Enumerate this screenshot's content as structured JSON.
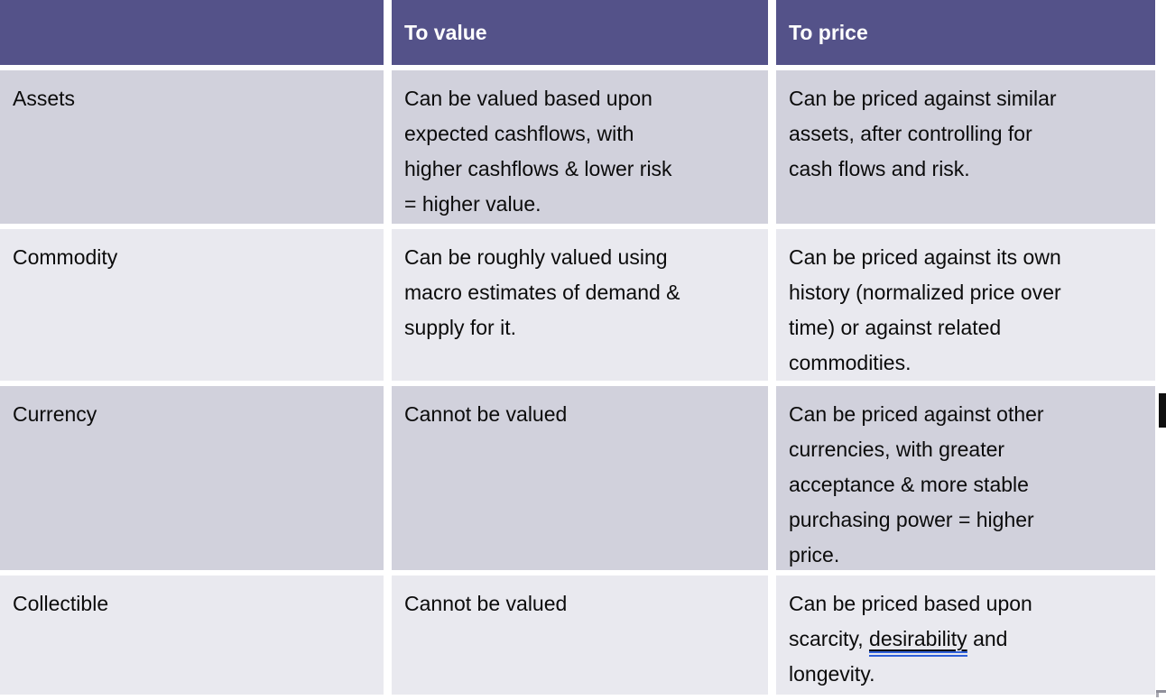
{
  "colors": {
    "header_bg": "#545289",
    "header_text": "#ffffff",
    "row_odd_bg": "#d1d1dc",
    "row_even_bg": "#e9e9ef",
    "body_text": "#0b0b0b",
    "grid_gap": "#ffffff",
    "spellcheck_underline_blue": "#2e5fd8",
    "edge_bar": "#101010"
  },
  "table": {
    "header": {
      "col1": "",
      "col2": "To value",
      "col3": "To price"
    },
    "rows": [
      {
        "label": "Assets",
        "to_value": "Can be valued based upon\nexpected cashflows, with\nhigher cashflows & lower risk\n= higher value.",
        "to_price": "Can be priced against similar\nassets, after controlling for\ncash flows and risk."
      },
      {
        "label": "Commodity",
        "to_value": "Can be roughly valued using\nmacro estimates of demand &\nsupply for it.",
        "to_price": "Can be priced against its own\nhistory (normalized price over\ntime) or against related\ncommodities."
      },
      {
        "label": "Currency",
        "to_value": "Cannot be valued",
        "to_price": "Can be priced against other\ncurrencies, with greater\nacceptance & more stable\npurchasing power = higher\nprice."
      },
      {
        "label": "Collectible",
        "to_value": "Cannot be valued",
        "to_price_parts": {
          "before": "Can be priced based upon\nscarcity, ",
          "underlined": "desirability",
          "after": " and\nlongevity."
        }
      }
    ]
  }
}
